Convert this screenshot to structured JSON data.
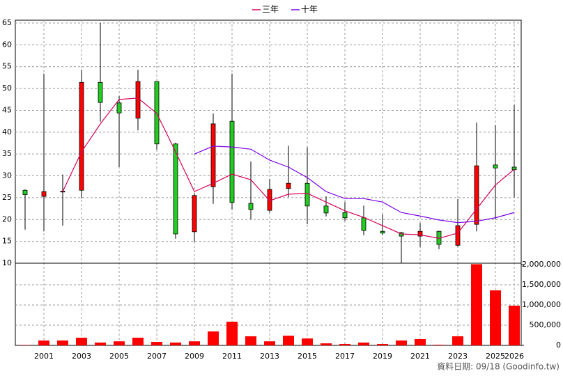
{
  "chart_data": [
    {
      "type": "candlestick",
      "categories": [
        null,
        "2001",
        null,
        "2003",
        null,
        "2005",
        null,
        "2007",
        null,
        "2009",
        null,
        "2011",
        null,
        "2013",
        null,
        "2015",
        null,
        "2017",
        null,
        "2019",
        null,
        "2021",
        null,
        "2023",
        null,
        "2025",
        "2026"
      ],
      "open": [
        26.7,
        25.3,
        26.3,
        26.7,
        51.4,
        46.7,
        43.2,
        51.6,
        37.3,
        17.2,
        27.5,
        42.5,
        23.7,
        22.1,
        27.1,
        28.3,
        23.1,
        21.6,
        20.4,
        17.3,
        17.0,
        16.2,
        17.3,
        14.1,
        18.9,
        32.5,
        32.0
      ],
      "high": [
        26.9,
        53.4,
        30.3,
        54.3,
        65.0,
        48.3,
        54.3,
        51.6,
        37.6,
        26.0,
        44.3,
        53.4,
        33.3,
        29.3,
        36.9,
        36.5,
        25.3,
        24.0,
        23.2,
        21.2,
        17.2,
        19.2,
        17.4,
        24.7,
        42.2,
        41.6,
        46.2
      ],
      "low": [
        17.7,
        17.3,
        18.6,
        24.8,
        42.4,
        32.0,
        40.4,
        36.0,
        15.6,
        14.9,
        23.6,
        22.3,
        20.0,
        21.6,
        25.1,
        18.9,
        20.7,
        19.7,
        16.4,
        16.4,
        10.0,
        13.7,
        13.2,
        13.8,
        17.3,
        20.0,
        25.1
      ],
      "close": [
        25.7,
        26.4,
        26.5,
        51.4,
        46.8,
        44.4,
        51.6,
        37.3,
        16.7,
        25.5,
        41.9,
        23.9,
        22.3,
        26.9,
        28.3,
        23.1,
        21.5,
        20.4,
        17.5,
        16.9,
        16.2,
        17.3,
        14.3,
        18.6,
        32.3,
        31.8,
        31.4
      ],
      "up_color": "#ff0000",
      "down_color": "#22cc22",
      "series": [
        {
          "name": "三年",
          "color": "#d6005a",
          "values": [
            null,
            null,
            26.4,
            35.5,
            41.9,
            47.5,
            47.8,
            44.3,
            35.5,
            26.4,
            28.3,
            30.4,
            29.1,
            24.3,
            25.8,
            26.0,
            24.0,
            22.0,
            20.5,
            18.6,
            16.7,
            16.5,
            15.7,
            16.9,
            22.4,
            27.9,
            31.5
          ]
        },
        {
          "name": "十年",
          "color": "#7a00e6",
          "values": [
            null,
            null,
            null,
            null,
            null,
            null,
            null,
            null,
            null,
            35.0,
            36.8,
            36.6,
            36.1,
            33.6,
            32.0,
            29.6,
            26.4,
            24.8,
            24.8,
            24.0,
            21.6,
            20.8,
            19.9,
            19.3,
            19.6,
            20.4,
            21.6
          ]
        }
      ],
      "ylim": [
        10,
        65.5
      ],
      "yticks": [
        10,
        15,
        20,
        25,
        30,
        35,
        40,
        45,
        50,
        55,
        60,
        65
      ],
      "grid": true
    },
    {
      "type": "bar",
      "values": [
        10000,
        120000,
        120000,
        190000,
        70000,
        100000,
        190000,
        85000,
        70000,
        100000,
        345000,
        586000,
        225000,
        100000,
        240000,
        170000,
        50000,
        35000,
        70000,
        35000,
        120000,
        155000,
        15000,
        225000,
        2010000,
        1362000,
        983000
      ],
      "color": "#ff0000",
      "ylim": [
        0,
        2000000
      ],
      "yticks": [
        0,
        {
          "value": 500000,
          "label": "500,000"
        },
        {
          "value": 1000000,
          "label": "1,000,000"
        },
        {
          "value": 1500000,
          "label": "1,500,000"
        },
        {
          "value": 2000000,
          "label": "2,000,000"
        }
      ],
      "grid": true
    }
  ],
  "footer": "資料日期: 09/18 (Goodinfo.tw)"
}
